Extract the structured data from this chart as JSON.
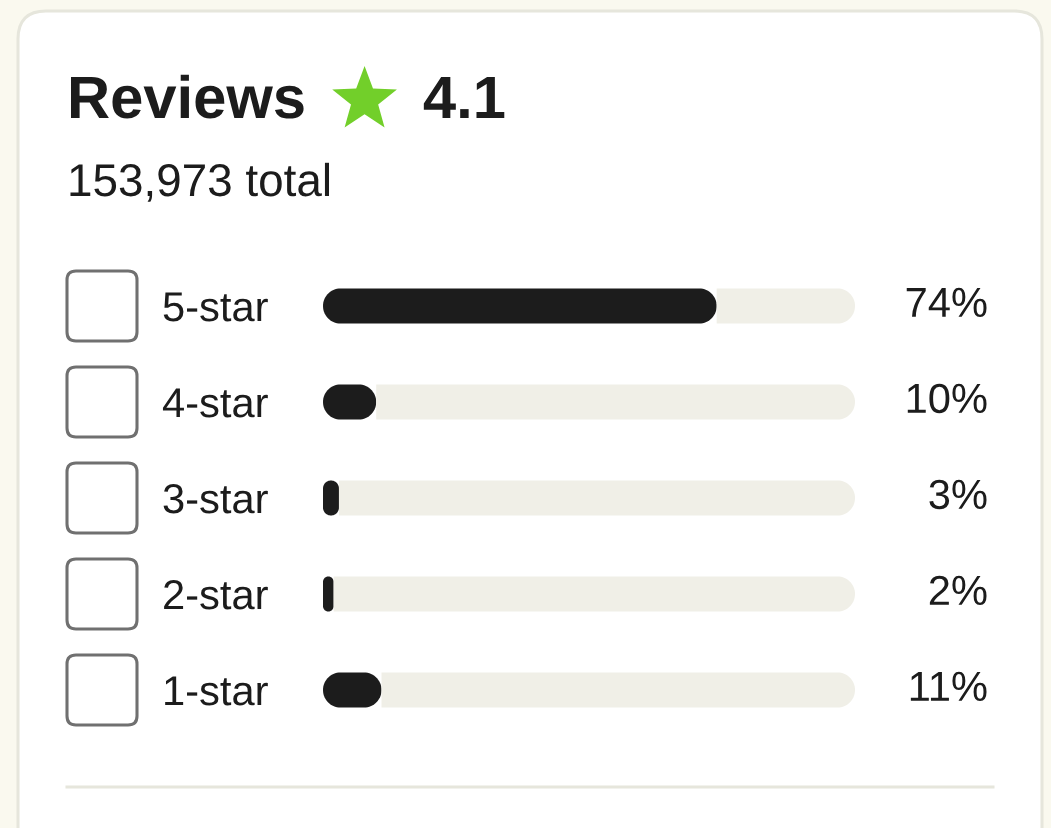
{
  "chart_data": {
    "type": "bar",
    "orientation": "horizontal",
    "stacked": true,
    "title": "Reviews",
    "subtitle": "153,973 total",
    "annotations": [
      "4.1"
    ],
    "categories": [
      "5-star",
      "4-star",
      "3-star",
      "2-star",
      "1-star"
    ],
    "series": [
      {
        "color": "#1c1c1c",
        "values": [
          74,
          10,
          3,
          2,
          11
        ],
        "value_labels": [
          "74%",
          "10%",
          "3%",
          "2%",
          "11%"
        ]
      },
      {
        "color": "#f0efe7",
        "values": [
          26,
          90,
          97,
          98,
          89
        ]
      }
    ]
  }
}
